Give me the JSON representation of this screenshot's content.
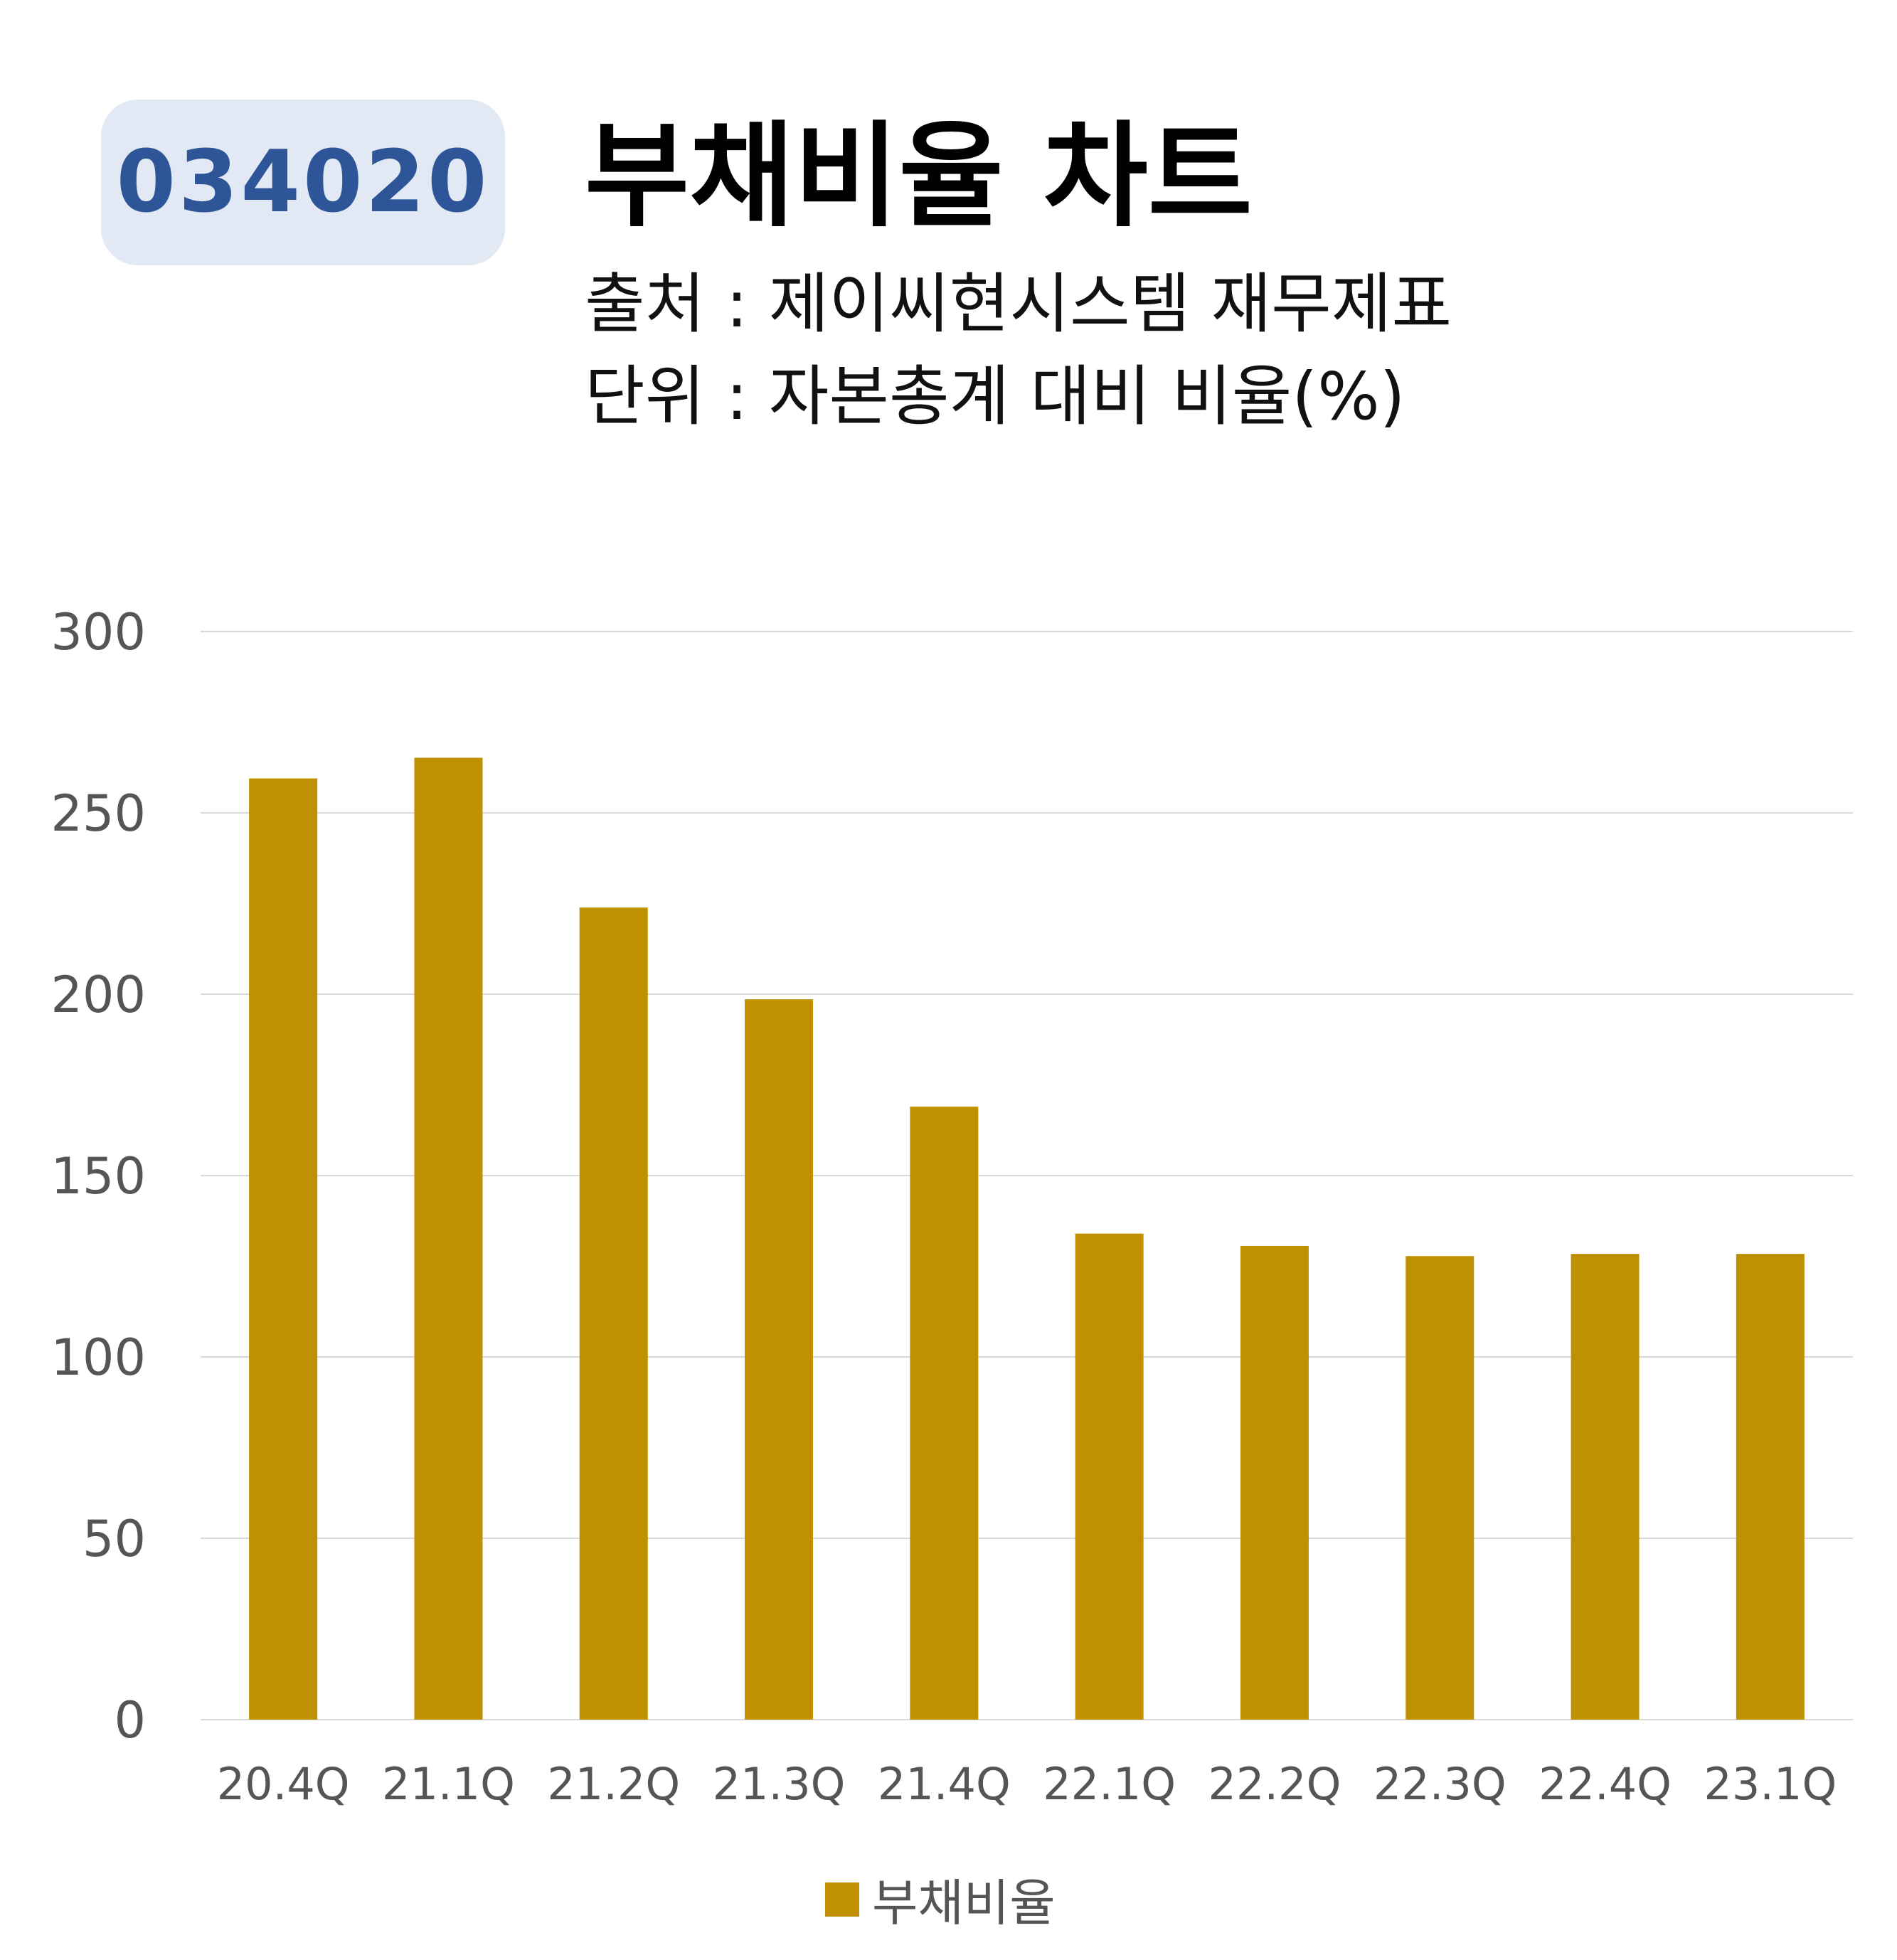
{
  "badge": {
    "code": "034020"
  },
  "header": {
    "title": "부채비율 차트",
    "source": "출처 : 제이씨현시스템 재무제표",
    "unit": "단위 : 자본총계 대비 비율(%)"
  },
  "colors": {
    "bar": "#bf9000",
    "grid": "#d9d9d9",
    "tick": "#555555",
    "badge_bg": "#e2e8f4",
    "badge_text": "#2d5597"
  },
  "chart_data": {
    "type": "bar",
    "categories": [
      "20.4Q",
      "21.1Q",
      "21.2Q",
      "21.3Q",
      "21.4Q",
      "22.1Q",
      "22.2Q",
      "22.3Q",
      "22.4Q",
      "23.1Q"
    ],
    "series": [
      {
        "name": "부채비율",
        "values": [
          259.5,
          265.2,
          223.9,
          198.6,
          169.0,
          134.0,
          130.6,
          127.8,
          128.4,
          128.4
        ]
      }
    ],
    "y_ticks": [
      "0",
      "50",
      "100",
      "150",
      "200",
      "250",
      "300"
    ],
    "ylim": [
      0,
      300
    ],
    "grid": true,
    "legend": "bottom-center"
  }
}
